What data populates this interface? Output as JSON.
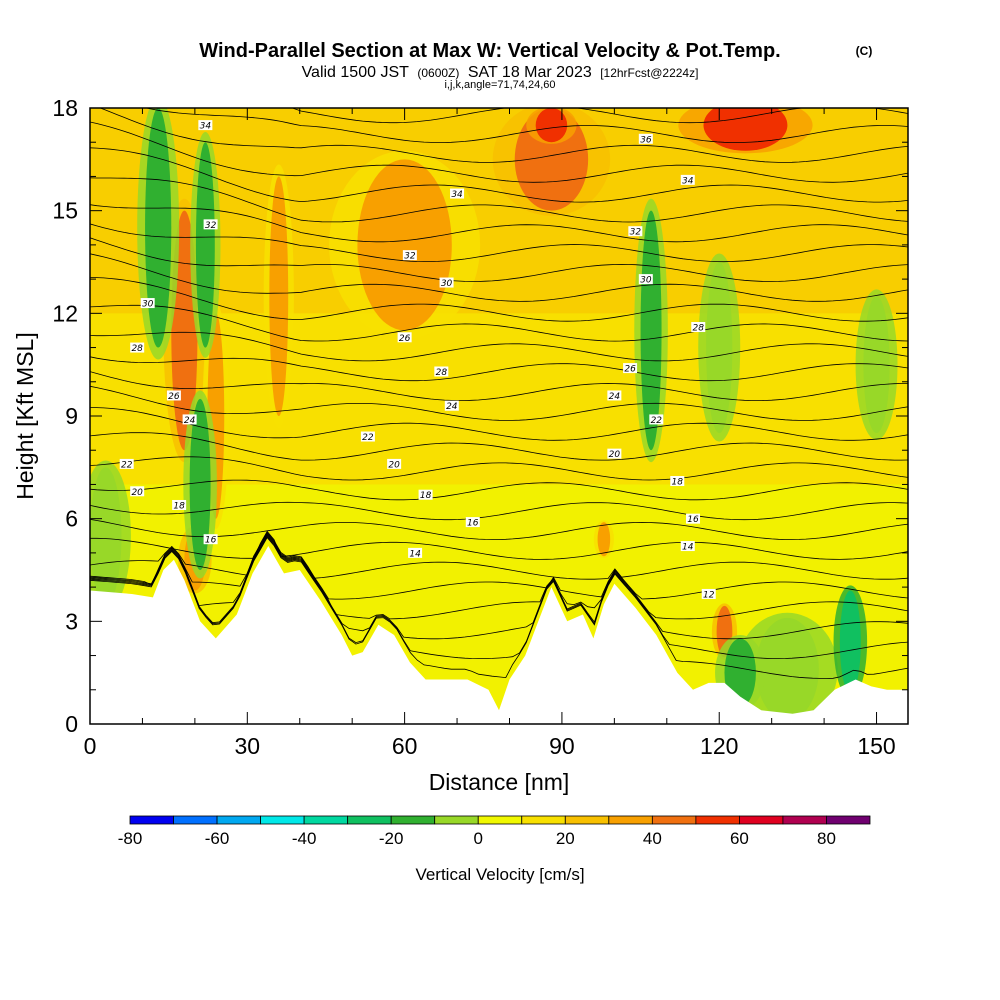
{
  "header": {
    "title_main": "Wind-Parallel Section at Max W: Vertical Velocity & Pot.Temp.",
    "title_mark": "(C)",
    "valid_pre": "Valid 1500 JST",
    "valid_z": "(0600Z)",
    "valid_date": "SAT 18 Mar 2023",
    "valid_fcst": "[12hrFcst@2224z]",
    "indices": "i,j,k,angle=71,74,24,60"
  },
  "chart_data": {
    "type": "heatmap",
    "xlabel": "Distance [nm]",
    "ylabel": "Height [Kft MSL]",
    "xlim": [
      0,
      156
    ],
    "ylim": [
      0,
      18
    ],
    "x_ticks": [
      "0",
      "30",
      "60",
      "90",
      "120",
      "150"
    ],
    "x_tick_values": [
      0,
      30,
      60,
      90,
      120,
      150
    ],
    "y_ticks": [
      "0",
      "3",
      "6",
      "9",
      "12",
      "15",
      "18"
    ],
    "y_tick_values": [
      0,
      3,
      6,
      9,
      12,
      15,
      18
    ],
    "colorbar": {
      "label": "Vertical Velocity [cm/s]",
      "ticks": [
        "-80",
        "-60",
        "-40",
        "-20",
        "0",
        "20",
        "40",
        "60",
        "80"
      ],
      "tick_values": [
        -80,
        -60,
        -40,
        -20,
        0,
        20,
        40,
        60,
        80
      ],
      "range": [
        -80,
        90
      ],
      "bins": [
        {
          "from": -80,
          "to": -70,
          "color": "#0000f0"
        },
        {
          "from": -70,
          "to": -60,
          "color": "#0070ff"
        },
        {
          "from": -60,
          "to": -50,
          "color": "#00a8f0"
        },
        {
          "from": -50,
          "to": -40,
          "color": "#00e8e8"
        },
        {
          "from": -40,
          "to": -30,
          "color": "#00d8a0"
        },
        {
          "from": -30,
          "to": -20,
          "color": "#10c060"
        },
        {
          "from": -20,
          "to": -10,
          "color": "#30b030"
        },
        {
          "from": -10,
          "to": 0,
          "color": "#98d828"
        },
        {
          "from": 0,
          "to": 10,
          "color": "#f0f800"
        },
        {
          "from": 10,
          "to": 20,
          "color": "#f8e000"
        },
        {
          "from": 20,
          "to": 30,
          "color": "#f8c000"
        },
        {
          "from": 30,
          "to": 40,
          "color": "#f8a000"
        },
        {
          "from": 40,
          "to": 50,
          "color": "#f07010"
        },
        {
          "from": 50,
          "to": 60,
          "color": "#f03000"
        },
        {
          "from": 60,
          "to": 70,
          "color": "#e00020"
        },
        {
          "from": 70,
          "to": 80,
          "color": "#b00050"
        },
        {
          "from": 80,
          "to": 90,
          "color": "#700070"
        }
      ]
    },
    "terrain_height_kft": [
      [
        0,
        3.9
      ],
      [
        8,
        3.8
      ],
      [
        12,
        3.7
      ],
      [
        14,
        4.5
      ],
      [
        16,
        4.8
      ],
      [
        18,
        4.2
      ],
      [
        21,
        3.0
      ],
      [
        24,
        2.5
      ],
      [
        28,
        3.2
      ],
      [
        31,
        4.4
      ],
      [
        34,
        5.2
      ],
      [
        37,
        4.4
      ],
      [
        40,
        4.5
      ],
      [
        44,
        3.6
      ],
      [
        48,
        2.6
      ],
      [
        50,
        2.0
      ],
      [
        52,
        2.1
      ],
      [
        55,
        2.9
      ],
      [
        58,
        2.6
      ],
      [
        61,
        1.8
      ],
      [
        64,
        1.3
      ],
      [
        68,
        1.3
      ],
      [
        72,
        1.3
      ],
      [
        76,
        1.0
      ],
      [
        78,
        0.4
      ],
      [
        80,
        1.3
      ],
      [
        83,
        2.0
      ],
      [
        86,
        3.2
      ],
      [
        88,
        4.0
      ],
      [
        91,
        3.0
      ],
      [
        94,
        3.2
      ],
      [
        96,
        2.5
      ],
      [
        98,
        3.5
      ],
      [
        100,
        4.1
      ],
      [
        104,
        3.4
      ],
      [
        108,
        2.6
      ],
      [
        112,
        1.5
      ],
      [
        115,
        1.0
      ],
      [
        118,
        1.2
      ],
      [
        121,
        1.2
      ],
      [
        124,
        0.8
      ],
      [
        128,
        0.4
      ],
      [
        134,
        0.3
      ],
      [
        138,
        0.4
      ],
      [
        142,
        1.0
      ],
      [
        146,
        1.3
      ],
      [
        149,
        1.1
      ],
      [
        152,
        1.0
      ],
      [
        156,
        1.0
      ]
    ],
    "potential_temperature_contours": {
      "units": "unlabeled (Celsius)",
      "levels": [
        12,
        14,
        16,
        18,
        20,
        22,
        24,
        26,
        28,
        30,
        32,
        34,
        36
      ],
      "labels": [
        "12",
        "14",
        "16",
        "18",
        "20",
        "22",
        "24",
        "26",
        "28",
        "30",
        "32",
        "34",
        "36"
      ],
      "label_positions": [
        {
          "level": 12,
          "x": 118,
          "y": 3.8
        },
        {
          "level": 14,
          "x": 62,
          "y": 5.0
        },
        {
          "level": 14,
          "x": 114,
          "y": 5.2
        },
        {
          "level": 16,
          "x": 23,
          "y": 5.4
        },
        {
          "level": 16,
          "x": 73,
          "y": 5.9
        },
        {
          "level": 16,
          "x": 115,
          "y": 6.0
        },
        {
          "level": 18,
          "x": 17,
          "y": 6.4
        },
        {
          "level": 18,
          "x": 64,
          "y": 6.7
        },
        {
          "level": 18,
          "x": 112,
          "y": 7.1
        },
        {
          "level": 20,
          "x": 9,
          "y": 6.8
        },
        {
          "level": 20,
          "x": 58,
          "y": 7.6
        },
        {
          "level": 20,
          "x": 100,
          "y": 7.9
        },
        {
          "level": 22,
          "x": 7,
          "y": 7.6
        },
        {
          "level": 22,
          "x": 53,
          "y": 8.4
        },
        {
          "level": 22,
          "x": 108,
          "y": 8.9
        },
        {
          "level": 24,
          "x": 19,
          "y": 8.9
        },
        {
          "level": 24,
          "x": 69,
          "y": 9.3
        },
        {
          "level": 24,
          "x": 100,
          "y": 9.6
        },
        {
          "level": 26,
          "x": 16,
          "y": 9.6
        },
        {
          "level": 26,
          "x": 60,
          "y": 11.3
        },
        {
          "level": 26,
          "x": 103,
          "y": 10.4
        },
        {
          "level": 28,
          "x": 9,
          "y": 11.0
        },
        {
          "level": 28,
          "x": 67,
          "y": 10.3
        },
        {
          "level": 28,
          "x": 116,
          "y": 11.6
        },
        {
          "level": 30,
          "x": 11,
          "y": 12.3
        },
        {
          "level": 30,
          "x": 68,
          "y": 12.9
        },
        {
          "level": 30,
          "x": 106,
          "y": 13.0
        },
        {
          "level": 32,
          "x": 23,
          "y": 14.6
        },
        {
          "level": 32,
          "x": 61,
          "y": 13.7
        },
        {
          "level": 32,
          "x": 104,
          "y": 14.4
        },
        {
          "level": 34,
          "x": 22,
          "y": 17.5
        },
        {
          "level": 34,
          "x": 70,
          "y": 15.5
        },
        {
          "level": 34,
          "x": 114,
          "y": 15.9
        },
        {
          "level": 36,
          "x": 106,
          "y": 17.1
        }
      ]
    },
    "vertical_velocity_features_cm_s": [
      {
        "x": 18,
        "y": 11.5,
        "width_nm": 2.5,
        "height_kft": 7,
        "value": 45
      },
      {
        "x": 20,
        "y": 4.8,
        "width_nm": 2.0,
        "height_kft": 1.8,
        "value": 35
      },
      {
        "x": 36,
        "y": 12.5,
        "width_nm": 1.8,
        "height_kft": 7,
        "value": 32
      },
      {
        "x": 24,
        "y": 9.0,
        "width_nm": 1.6,
        "height_kft": 6,
        "value": 30
      },
      {
        "x": 60,
        "y": 14.0,
        "width_nm": 9,
        "height_kft": 5,
        "value": 30
      },
      {
        "x": 88,
        "y": 16.5,
        "width_nm": 7,
        "height_kft": 3,
        "value": 42
      },
      {
        "x": 88,
        "y": 17.5,
        "width_nm": 3,
        "height_kft": 1,
        "value": 55
      },
      {
        "x": 125,
        "y": 17.5,
        "width_nm": 8,
        "height_kft": 1.5,
        "value": 55
      },
      {
        "x": 121,
        "y": 2.7,
        "width_nm": 1.5,
        "height_kft": 1.5,
        "value": 45
      },
      {
        "x": 98,
        "y": 5.4,
        "width_nm": 1.2,
        "height_kft": 1,
        "value": 32
      },
      {
        "x": 13,
        "y": 14.5,
        "width_nm": 2.5,
        "height_kft": 7,
        "value": -15
      },
      {
        "x": 21,
        "y": 7.0,
        "width_nm": 2.0,
        "height_kft": 5,
        "value": -20
      },
      {
        "x": 22,
        "y": 14.0,
        "width_nm": 1.8,
        "height_kft": 6,
        "value": -15
      },
      {
        "x": 3,
        "y": 5.5,
        "width_nm": 3,
        "height_kft": 4,
        "value": -10
      },
      {
        "x": 107,
        "y": 11.5,
        "width_nm": 2.0,
        "height_kft": 7,
        "value": -12
      },
      {
        "x": 133,
        "y": 1.6,
        "width_nm": 6,
        "height_kft": 3,
        "value": -10
      },
      {
        "x": 124,
        "y": 1.5,
        "width_nm": 3,
        "height_kft": 2,
        "value": -15
      },
      {
        "x": 145,
        "y": 2.4,
        "width_nm": 2.0,
        "height_kft": 3,
        "value": -22
      },
      {
        "x": 120,
        "y": 11.0,
        "width_nm": 2.5,
        "height_kft": 5,
        "value": -10
      },
      {
        "x": 150,
        "y": 10.5,
        "width_nm": 2.5,
        "height_kft": 4,
        "value": -10
      }
    ]
  }
}
